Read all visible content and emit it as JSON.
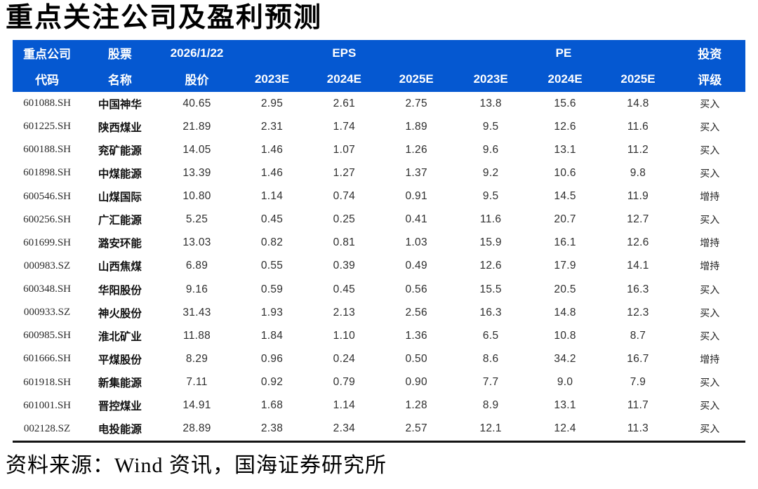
{
  "title": "重点关注公司及盈利预测",
  "source_note": "资料来源：Wind 资讯，国海证券研究所",
  "colors": {
    "header_bg": "#0558D1",
    "header_text": "#FFFFFF",
    "body_text": "#2E2E2E",
    "title_color": "#000000",
    "bottom_rule": "#141414"
  },
  "table": {
    "header": {
      "code_line1": "重点公司",
      "code_line2": "代码",
      "name_line1": "股票",
      "name_line2": "名称",
      "price_line1": "2026/1/22",
      "price_line2": "股价",
      "eps_group": "EPS",
      "pe_group": "PE",
      "eps_years": [
        "2023E",
        "2024E",
        "2025E"
      ],
      "pe_years": [
        "2023E",
        "2024E",
        "2025E"
      ],
      "rating_line1": "投资",
      "rating_line2": "评级"
    },
    "rows": [
      {
        "code": "601088.SH",
        "name": "中国神华",
        "price": "40.65",
        "eps": [
          "2.95",
          "2.61",
          "2.75"
        ],
        "pe": [
          "13.8",
          "15.6",
          "14.8"
        ],
        "rating": "买入"
      },
      {
        "code": "601225.SH",
        "name": "陕西煤业",
        "price": "21.89",
        "eps": [
          "2.31",
          "1.74",
          "1.89"
        ],
        "pe": [
          "9.5",
          "12.6",
          "11.6"
        ],
        "rating": "买入"
      },
      {
        "code": "600188.SH",
        "name": "兖矿能源",
        "price": "14.05",
        "eps": [
          "1.46",
          "1.07",
          "1.26"
        ],
        "pe": [
          "9.6",
          "13.1",
          "11.2"
        ],
        "rating": "买入"
      },
      {
        "code": "601898.SH",
        "name": "中煤能源",
        "price": "13.39",
        "eps": [
          "1.46",
          "1.27",
          "1.37"
        ],
        "pe": [
          "9.2",
          "10.6",
          "9.8"
        ],
        "rating": "买入"
      },
      {
        "code": "600546.SH",
        "name": "山煤国际",
        "price": "10.80",
        "eps": [
          "1.14",
          "0.74",
          "0.91"
        ],
        "pe": [
          "9.5",
          "14.5",
          "11.9"
        ],
        "rating": "增持"
      },
      {
        "code": "600256.SH",
        "name": "广汇能源",
        "price": "5.25",
        "eps": [
          "0.45",
          "0.25",
          "0.41"
        ],
        "pe": [
          "11.6",
          "20.7",
          "12.7"
        ],
        "rating": "买入"
      },
      {
        "code": "601699.SH",
        "name": "潞安环能",
        "price": "13.03",
        "eps": [
          "0.82",
          "0.81",
          "1.03"
        ],
        "pe": [
          "15.9",
          "16.1",
          "12.6"
        ],
        "rating": "增持"
      },
      {
        "code": "000983.SZ",
        "name": "山西焦煤",
        "price": "6.89",
        "eps": [
          "0.55",
          "0.39",
          "0.49"
        ],
        "pe": [
          "12.6",
          "17.9",
          "14.1"
        ],
        "rating": "增持"
      },
      {
        "code": "600348.SH",
        "name": "华阳股份",
        "price": "9.16",
        "eps": [
          "0.59",
          "0.45",
          "0.56"
        ],
        "pe": [
          "15.5",
          "20.5",
          "16.3"
        ],
        "rating": "买入"
      },
      {
        "code": "000933.SZ",
        "name": "神火股份",
        "price": "31.43",
        "eps": [
          "1.93",
          "2.13",
          "2.56"
        ],
        "pe": [
          "16.3",
          "14.8",
          "12.3"
        ],
        "rating": "买入"
      },
      {
        "code": "600985.SH",
        "name": "淮北矿业",
        "price": "11.88",
        "eps": [
          "1.84",
          "1.10",
          "1.36"
        ],
        "pe": [
          "6.5",
          "10.8",
          "8.7"
        ],
        "rating": "买入"
      },
      {
        "code": "601666.SH",
        "name": "平煤股份",
        "price": "8.29",
        "eps": [
          "0.96",
          "0.24",
          "0.50"
        ],
        "pe": [
          "8.6",
          "34.2",
          "16.7"
        ],
        "rating": "增持"
      },
      {
        "code": "601918.SH",
        "name": "新集能源",
        "price": "7.11",
        "eps": [
          "0.92",
          "0.79",
          "0.90"
        ],
        "pe": [
          "7.7",
          "9.0",
          "7.9"
        ],
        "rating": "买入"
      },
      {
        "code": "601001.SH",
        "name": "晋控煤业",
        "price": "14.91",
        "eps": [
          "1.68",
          "1.14",
          "1.28"
        ],
        "pe": [
          "8.9",
          "13.1",
          "11.7"
        ],
        "rating": "买入"
      },
      {
        "code": "002128.SZ",
        "name": "电投能源",
        "price": "28.89",
        "eps": [
          "2.38",
          "2.34",
          "2.57"
        ],
        "pe": [
          "12.1",
          "12.4",
          "11.3"
        ],
        "rating": "买入"
      }
    ]
  }
}
